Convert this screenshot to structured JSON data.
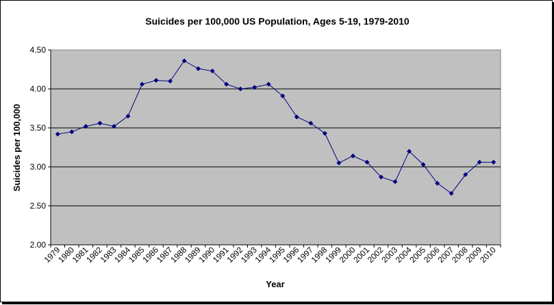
{
  "chart_data": {
    "type": "line",
    "title": "Suicides per 100,000 US Population, Ages 5-19, 1979-2010",
    "xlabel": "Year",
    "ylabel": "Suicides per 100,000",
    "ylim": [
      2.0,
      4.5
    ],
    "yticks": [
      "2.00",
      "2.50",
      "3.00",
      "3.50",
      "4.00",
      "4.50"
    ],
    "grid": true,
    "legend": "none",
    "plot_background": "#c0c0c0",
    "line_color": "#000080",
    "categories": [
      "1979",
      "1980",
      "1981",
      "1982",
      "1983",
      "1984",
      "1985",
      "1986",
      "1987",
      "1988",
      "1989",
      "1990",
      "1991",
      "1992",
      "1993",
      "1994",
      "1995",
      "1996",
      "1997",
      "1998",
      "1999",
      "2000",
      "2001",
      "2002",
      "2003",
      "2004",
      "2005",
      "2006",
      "2007",
      "2008",
      "2009",
      "2010"
    ],
    "series": [
      {
        "values": [
          3.42,
          3.45,
          3.52,
          3.56,
          3.52,
          3.65,
          4.06,
          4.11,
          4.1,
          4.36,
          4.26,
          4.23,
          4.06,
          4.0,
          4.02,
          4.06,
          3.91,
          3.64,
          3.56,
          3.43,
          3.05,
          3.14,
          3.06,
          2.87,
          2.81,
          3.2,
          3.03,
          2.79,
          2.66,
          2.9,
          3.06,
          3.06
        ]
      }
    ]
  }
}
